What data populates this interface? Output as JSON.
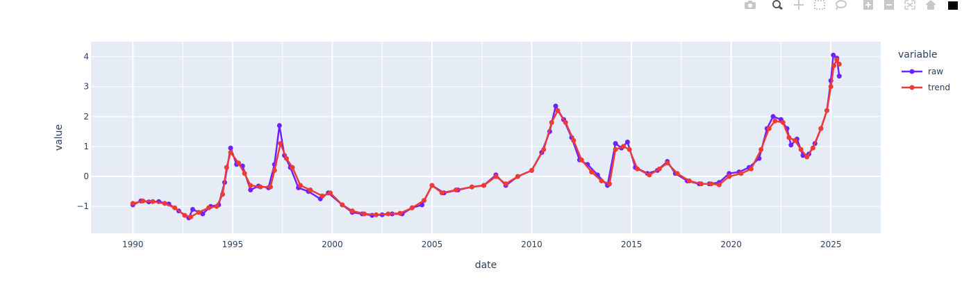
{
  "toolbar": {
    "buttons": [
      "camera-icon",
      "zoom-icon",
      "pan-icon",
      "box-select-icon",
      "lasso-icon",
      "zoom-in-icon",
      "zoom-out-icon",
      "autoscale-icon",
      "reset-axes-icon",
      "plotly-logo-icon"
    ]
  },
  "colors": {
    "raw": "#6f21ff",
    "trend": "#ef3b35",
    "plot_bg": "#e5ecf6",
    "grid": "#ffffff",
    "text": "#2a3f5f"
  },
  "chart_data": {
    "type": "line",
    "xlabel": "date",
    "ylabel": "value",
    "x_ticks": [
      "1990",
      "1995",
      "2000",
      "2005",
      "2010",
      "2015",
      "2020",
      "2025"
    ],
    "y_ticks": [
      "−1",
      "0",
      "1",
      "2",
      "3",
      "4"
    ],
    "xlim": [
      1987.9,
      2027.5
    ],
    "ylim": [
      -1.9,
      4.5
    ],
    "grid": true,
    "legend": {
      "title": "variable",
      "placement": "right"
    },
    "series": [
      {
        "name": "raw",
        "anchors": [
          [
            1990.0,
            -0.95
          ],
          [
            1990.4,
            -0.82
          ],
          [
            1990.8,
            -0.85
          ],
          [
            1991.3,
            -0.84
          ],
          [
            1991.8,
            -0.92
          ],
          [
            1992.3,
            -1.15
          ],
          [
            1992.8,
            -1.38
          ],
          [
            1993.0,
            -1.1
          ],
          [
            1993.5,
            -1.25
          ],
          [
            1993.9,
            -1.0
          ],
          [
            1994.3,
            -0.95
          ],
          [
            1994.6,
            -0.2
          ],
          [
            1994.9,
            0.95
          ],
          [
            1995.2,
            0.4
          ],
          [
            1995.5,
            0.35
          ],
          [
            1995.9,
            -0.45
          ],
          [
            1996.3,
            -0.32
          ],
          [
            1996.8,
            -0.38
          ],
          [
            1997.1,
            0.4
          ],
          [
            1997.35,
            1.7
          ],
          [
            1997.6,
            0.7
          ],
          [
            1997.9,
            0.3
          ],
          [
            1998.3,
            -0.38
          ],
          [
            1998.8,
            -0.5
          ],
          [
            1999.4,
            -0.75
          ],
          [
            1999.8,
            -0.55
          ],
          [
            2000.5,
            -0.95
          ],
          [
            2001.0,
            -1.2
          ],
          [
            2001.5,
            -1.25
          ],
          [
            2002.0,
            -1.3
          ],
          [
            2002.5,
            -1.28
          ],
          [
            2003.0,
            -1.25
          ],
          [
            2003.5,
            -1.25
          ],
          [
            2004.0,
            -1.05
          ],
          [
            2004.5,
            -0.95
          ],
          [
            2005.0,
            -0.3
          ],
          [
            2005.6,
            -0.55
          ],
          [
            2006.3,
            -0.45
          ],
          [
            2007.0,
            -0.35
          ],
          [
            2007.6,
            -0.3
          ],
          [
            2008.2,
            0.05
          ],
          [
            2008.7,
            -0.3
          ],
          [
            2009.3,
            0.0
          ],
          [
            2010.0,
            0.2
          ],
          [
            2010.5,
            0.8
          ],
          [
            2010.9,
            1.5
          ],
          [
            2011.2,
            2.35
          ],
          [
            2011.6,
            1.9
          ],
          [
            2012.0,
            1.3
          ],
          [
            2012.4,
            0.55
          ],
          [
            2012.8,
            0.4
          ],
          [
            2013.3,
            0.05
          ],
          [
            2013.8,
            -0.3
          ],
          [
            2014.2,
            1.1
          ],
          [
            2014.5,
            0.95
          ],
          [
            2014.8,
            1.15
          ],
          [
            2015.2,
            0.3
          ],
          [
            2015.8,
            0.1
          ],
          [
            2016.3,
            0.2
          ],
          [
            2016.8,
            0.5
          ],
          [
            2017.2,
            0.1
          ],
          [
            2017.8,
            -0.15
          ],
          [
            2018.4,
            -0.25
          ],
          [
            2018.9,
            -0.25
          ],
          [
            2019.4,
            -0.2
          ],
          [
            2019.9,
            0.1
          ],
          [
            2020.4,
            0.15
          ],
          [
            2020.9,
            0.3
          ],
          [
            2021.4,
            0.6
          ],
          [
            2021.8,
            1.6
          ],
          [
            2022.1,
            2.0
          ],
          [
            2022.5,
            1.9
          ],
          [
            2022.8,
            1.6
          ],
          [
            2023.0,
            1.05
          ],
          [
            2023.3,
            1.25
          ],
          [
            2023.6,
            0.7
          ],
          [
            2023.9,
            0.75
          ],
          [
            2024.2,
            1.1
          ],
          [
            2024.5,
            1.6
          ],
          [
            2024.8,
            2.2
          ],
          [
            2025.0,
            3.2
          ],
          [
            2025.12,
            4.05
          ],
          [
            2025.3,
            3.95
          ],
          [
            2025.42,
            3.35
          ]
        ]
      },
      {
        "name": "trend",
        "anchors": [
          [
            1990.0,
            -0.9
          ],
          [
            1990.5,
            -0.82
          ],
          [
            1991.0,
            -0.84
          ],
          [
            1991.6,
            -0.9
          ],
          [
            1992.1,
            -1.05
          ],
          [
            1992.6,
            -1.3
          ],
          [
            1992.9,
            -1.35
          ],
          [
            1993.3,
            -1.2
          ],
          [
            1993.8,
            -1.05
          ],
          [
            1994.2,
            -1.0
          ],
          [
            1994.5,
            -0.6
          ],
          [
            1994.7,
            0.3
          ],
          [
            1994.9,
            0.8
          ],
          [
            1995.3,
            0.45
          ],
          [
            1995.6,
            0.1
          ],
          [
            1995.9,
            -0.3
          ],
          [
            1996.4,
            -0.35
          ],
          [
            1996.9,
            -0.35
          ],
          [
            1997.1,
            0.2
          ],
          [
            1997.4,
            1.1
          ],
          [
            1997.7,
            0.6
          ],
          [
            1998.0,
            0.3
          ],
          [
            1998.4,
            -0.3
          ],
          [
            1998.9,
            -0.45
          ],
          [
            1999.5,
            -0.65
          ],
          [
            1999.9,
            -0.55
          ],
          [
            2000.5,
            -0.95
          ],
          [
            2001.0,
            -1.15
          ],
          [
            2001.6,
            -1.25
          ],
          [
            2002.2,
            -1.28
          ],
          [
            2002.8,
            -1.25
          ],
          [
            2003.4,
            -1.23
          ],
          [
            2004.0,
            -1.05
          ],
          [
            2004.6,
            -0.8
          ],
          [
            2005.0,
            -0.3
          ],
          [
            2005.5,
            -0.55
          ],
          [
            2006.2,
            -0.45
          ],
          [
            2007.0,
            -0.35
          ],
          [
            2007.6,
            -0.3
          ],
          [
            2008.2,
            0.0
          ],
          [
            2008.7,
            -0.25
          ],
          [
            2009.3,
            0.0
          ],
          [
            2010.0,
            0.2
          ],
          [
            2010.6,
            0.9
          ],
          [
            2011.0,
            1.8
          ],
          [
            2011.3,
            2.2
          ],
          [
            2011.7,
            1.8
          ],
          [
            2012.1,
            1.2
          ],
          [
            2012.5,
            0.55
          ],
          [
            2013.0,
            0.15
          ],
          [
            2013.5,
            -0.15
          ],
          [
            2013.9,
            -0.25
          ],
          [
            2014.2,
            0.9
          ],
          [
            2014.6,
            1.0
          ],
          [
            2014.9,
            0.9
          ],
          [
            2015.3,
            0.25
          ],
          [
            2015.9,
            0.05
          ],
          [
            2016.4,
            0.25
          ],
          [
            2016.8,
            0.45
          ],
          [
            2017.3,
            0.1
          ],
          [
            2017.9,
            -0.15
          ],
          [
            2018.5,
            -0.25
          ],
          [
            2019.0,
            -0.25
          ],
          [
            2019.4,
            -0.28
          ],
          [
            2019.9,
            0.0
          ],
          [
            2020.5,
            0.1
          ],
          [
            2021.0,
            0.25
          ],
          [
            2021.5,
            0.9
          ],
          [
            2021.9,
            1.6
          ],
          [
            2022.2,
            1.85
          ],
          [
            2022.6,
            1.8
          ],
          [
            2022.9,
            1.3
          ],
          [
            2023.2,
            1.2
          ],
          [
            2023.5,
            0.9
          ],
          [
            2023.8,
            0.65
          ],
          [
            2024.1,
            0.95
          ],
          [
            2024.5,
            1.6
          ],
          [
            2024.8,
            2.2
          ],
          [
            2025.0,
            3.0
          ],
          [
            2025.15,
            3.7
          ],
          [
            2025.3,
            3.9
          ],
          [
            2025.42,
            3.75
          ]
        ]
      }
    ]
  }
}
